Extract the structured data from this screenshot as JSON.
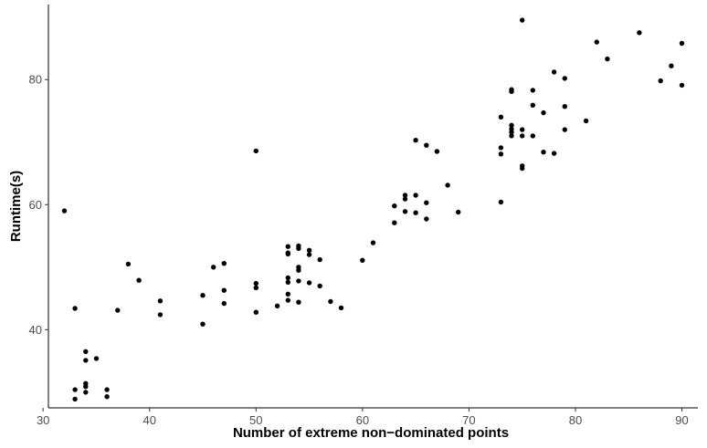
{
  "chart_data": {
    "type": "scatter",
    "title": "",
    "xlabel": "Number of extreme non−dominated points",
    "ylabel": "Runtime(s)",
    "xlim": [
      30.5,
      91.5
    ],
    "ylim": [
      27.5,
      92
    ],
    "xticks": [
      30,
      40,
      50,
      60,
      70,
      80,
      90
    ],
    "yticks": [
      40,
      60,
      80
    ],
    "grid": false,
    "point_color": "#000000",
    "points": [
      [
        32,
        59.0
      ],
      [
        33,
        43.4
      ],
      [
        33,
        30.4
      ],
      [
        33,
        28.9
      ],
      [
        34,
        36.5
      ],
      [
        34,
        35.1
      ],
      [
        34,
        31.4
      ],
      [
        34,
        30.9
      ],
      [
        34,
        30.0
      ],
      [
        35,
        35.4
      ],
      [
        36,
        30.4
      ],
      [
        36,
        29.3
      ],
      [
        37,
        43.1
      ],
      [
        38,
        50.5
      ],
      [
        39,
        47.9
      ],
      [
        41,
        44.6
      ],
      [
        41,
        42.4
      ],
      [
        45,
        45.5
      ],
      [
        45,
        40.9
      ],
      [
        46,
        50.0
      ],
      [
        47,
        50.6
      ],
      [
        47,
        46.3
      ],
      [
        47,
        44.2
      ],
      [
        50,
        68.6
      ],
      [
        50,
        47.4
      ],
      [
        50,
        46.7
      ],
      [
        50,
        42.8
      ],
      [
        52,
        43.8
      ],
      [
        53,
        53.3
      ],
      [
        53,
        52.1
      ],
      [
        53,
        52.3
      ],
      [
        53,
        48.3
      ],
      [
        53,
        47.6
      ],
      [
        53,
        45.7
      ],
      [
        53,
        44.7
      ],
      [
        54,
        53.4
      ],
      [
        54,
        53.0
      ],
      [
        54,
        50.0
      ],
      [
        54,
        49.5
      ],
      [
        54,
        47.8
      ],
      [
        54,
        44.4
      ],
      [
        55,
        52.7
      ],
      [
        55,
        52.0
      ],
      [
        55,
        47.5
      ],
      [
        56,
        51.2
      ],
      [
        56,
        47.0
      ],
      [
        57,
        44.5
      ],
      [
        58,
        43.5
      ],
      [
        60,
        51.1
      ],
      [
        61,
        53.9
      ],
      [
        63,
        59.8
      ],
      [
        63,
        57.1
      ],
      [
        64,
        61.5
      ],
      [
        64,
        60.9
      ],
      [
        64,
        58.9
      ],
      [
        65,
        70.3
      ],
      [
        65,
        61.5
      ],
      [
        65,
        58.7
      ],
      [
        66,
        69.5
      ],
      [
        66,
        60.3
      ],
      [
        66,
        57.7
      ],
      [
        67,
        68.5
      ],
      [
        68,
        63.1
      ],
      [
        69,
        58.8
      ],
      [
        73,
        74.0
      ],
      [
        73,
        69.1
      ],
      [
        73,
        68.1
      ],
      [
        73,
        60.4
      ],
      [
        74,
        78.4
      ],
      [
        74,
        78.1
      ],
      [
        74,
        72.7
      ],
      [
        74,
        72.1
      ],
      [
        74,
        71.6
      ],
      [
        74,
        71.0
      ],
      [
        75,
        89.5
      ],
      [
        75,
        72.0
      ],
      [
        75,
        71.0
      ],
      [
        75,
        66.2
      ],
      [
        75,
        65.8
      ],
      [
        76,
        78.3
      ],
      [
        76,
        75.9
      ],
      [
        76,
        71.0
      ],
      [
        77,
        74.7
      ],
      [
        77,
        68.4
      ],
      [
        78,
        81.2
      ],
      [
        78,
        68.2
      ],
      [
        79,
        80.2
      ],
      [
        79,
        75.7
      ],
      [
        79,
        72.0
      ],
      [
        81,
        73.4
      ],
      [
        82,
        86.0
      ],
      [
        83,
        83.3
      ],
      [
        86,
        87.5
      ],
      [
        88,
        79.8
      ],
      [
        89,
        82.2
      ],
      [
        90,
        85.8
      ],
      [
        90,
        79.1
      ]
    ]
  }
}
